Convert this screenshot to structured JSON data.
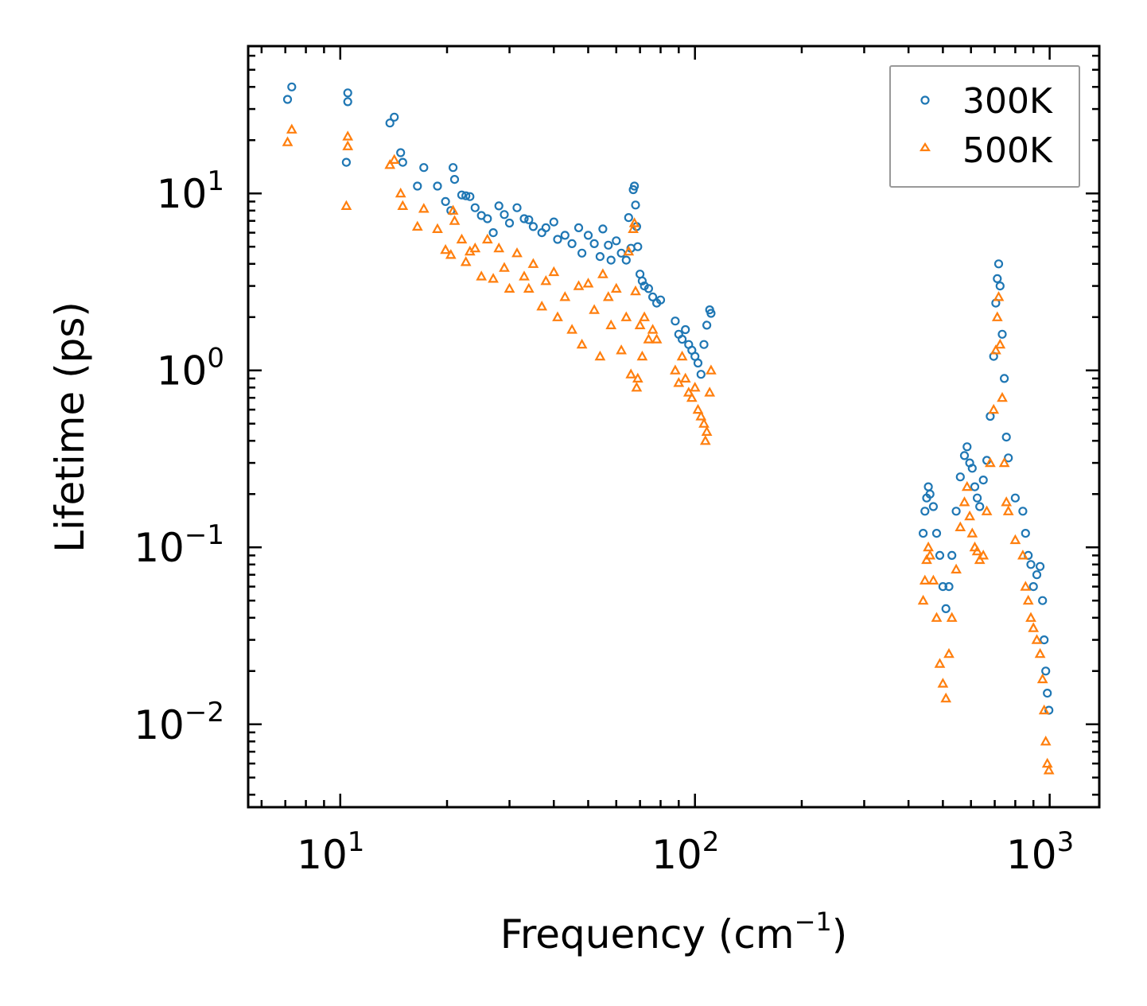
{
  "chart_data": {
    "type": "scatter",
    "xscale": "log",
    "yscale": "log",
    "xlabel": {
      "main": "Frequency (cm",
      "sup": "−1",
      "tail": ")"
    },
    "ylabel": "Lifetime (ps)",
    "xlim": [
      5.5,
      1380
    ],
    "ylim": [
      0.0034,
      68
    ],
    "x_ticks": [
      {
        "value": 10,
        "base": "10",
        "exp": "1"
      },
      {
        "value": 100,
        "base": "10",
        "exp": "2"
      },
      {
        "value": 1000,
        "base": "10",
        "exp": "3"
      }
    ],
    "y_ticks": [
      {
        "value": 0.01,
        "base": "10",
        "exp": "−2"
      },
      {
        "value": 0.1,
        "base": "10",
        "exp": "−1"
      },
      {
        "value": 1,
        "base": "10",
        "exp": "0"
      },
      {
        "value": 10,
        "base": "10",
        "exp": "1"
      }
    ],
    "legend_position": "top-right",
    "series": [
      {
        "name": "300K",
        "marker": "circle",
        "color": "#1f77b4",
        "points": [
          [
            7.1,
            34
          ],
          [
            7.3,
            40
          ],
          [
            10.5,
            37
          ],
          [
            10.5,
            33
          ],
          [
            10.4,
            15
          ],
          [
            13.8,
            25
          ],
          [
            14.2,
            27
          ],
          [
            14.8,
            17
          ],
          [
            15.0,
            15
          ],
          [
            16.5,
            11
          ],
          [
            17.2,
            14
          ],
          [
            18.8,
            11
          ],
          [
            19.8,
            9
          ],
          [
            20.5,
            8
          ],
          [
            20.8,
            14
          ],
          [
            21.0,
            12
          ],
          [
            22.0,
            9.8
          ],
          [
            22.6,
            9.7
          ],
          [
            23.2,
            9.6
          ],
          [
            24.0,
            8.3
          ],
          [
            25.0,
            7.5
          ],
          [
            26.0,
            7.2
          ],
          [
            27.0,
            6.0
          ],
          [
            28.0,
            8.5
          ],
          [
            29.0,
            7.6
          ],
          [
            30.0,
            6.8
          ],
          [
            31.5,
            8.3
          ],
          [
            33.0,
            7.2
          ],
          [
            34.0,
            7.1
          ],
          [
            35.0,
            6.5
          ],
          [
            37.0,
            6.0
          ],
          [
            38.0,
            6.4
          ],
          [
            40.0,
            6.9
          ],
          [
            41.0,
            5.5
          ],
          [
            43.0,
            5.8
          ],
          [
            45.0,
            5.2
          ],
          [
            47.0,
            6.4
          ],
          [
            48.0,
            4.6
          ],
          [
            50.0,
            5.8
          ],
          [
            52.0,
            5.2
          ],
          [
            54.0,
            4.4
          ],
          [
            55.0,
            6.3
          ],
          [
            57.0,
            5.1
          ],
          [
            58.0,
            4.2
          ],
          [
            60.0,
            5.4
          ],
          [
            62.0,
            4.6
          ],
          [
            64.0,
            4.2
          ],
          [
            65.0,
            7.3
          ],
          [
            66.0,
            4.9
          ],
          [
            67.0,
            10.5
          ],
          [
            67.5,
            11.0
          ],
          [
            68.0,
            8.6
          ],
          [
            68.5,
            6.5
          ],
          [
            69.0,
            5.0
          ],
          [
            70.0,
            3.5
          ],
          [
            71.0,
            3.2
          ],
          [
            72.0,
            3.0
          ],
          [
            74.0,
            2.9
          ],
          [
            76.0,
            2.6
          ],
          [
            78.0,
            2.4
          ],
          [
            80.0,
            2.5
          ],
          [
            88.0,
            1.9
          ],
          [
            90.0,
            1.6
          ],
          [
            92.0,
            1.5
          ],
          [
            94.0,
            1.7
          ],
          [
            96.0,
            1.4
          ],
          [
            98.0,
            1.3
          ],
          [
            100.0,
            1.2
          ],
          [
            102.0,
            1.1
          ],
          [
            104.0,
            0.95
          ],
          [
            106.0,
            1.4
          ],
          [
            108.0,
            1.8
          ],
          [
            110.0,
            2.2
          ],
          [
            111.0,
            2.1
          ],
          [
            440.0,
            0.12
          ],
          [
            445.0,
            0.16
          ],
          [
            450.0,
            0.19
          ],
          [
            455.0,
            0.22
          ],
          [
            460.0,
            0.2
          ],
          [
            470.0,
            0.17
          ],
          [
            480.0,
            0.12
          ],
          [
            490.0,
            0.09
          ],
          [
            500.0,
            0.06
          ],
          [
            510.0,
            0.045
          ],
          [
            520.0,
            0.06
          ],
          [
            530.0,
            0.09
          ],
          [
            545.0,
            0.16
          ],
          [
            560.0,
            0.25
          ],
          [
            575.0,
            0.33
          ],
          [
            585.0,
            0.37
          ],
          [
            595.0,
            0.3
          ],
          [
            605.0,
            0.28
          ],
          [
            615.0,
            0.22
          ],
          [
            625.0,
            0.19
          ],
          [
            635.0,
            0.17
          ],
          [
            650.0,
            0.24
          ],
          [
            665.0,
            0.31
          ],
          [
            680.0,
            0.55
          ],
          [
            695.0,
            1.2
          ],
          [
            705.0,
            2.4
          ],
          [
            712.0,
            3.3
          ],
          [
            718.0,
            4.0
          ],
          [
            725.0,
            3.0
          ],
          [
            735.0,
            1.6
          ],
          [
            745.0,
            0.9
          ],
          [
            755.0,
            0.42
          ],
          [
            765.0,
            0.32
          ],
          [
            800.0,
            0.19
          ],
          [
            840.0,
            0.16
          ],
          [
            855.0,
            0.12
          ],
          [
            870.0,
            0.09
          ],
          [
            885.0,
            0.08
          ],
          [
            900.0,
            0.06
          ],
          [
            920.0,
            0.07
          ],
          [
            940.0,
            0.078
          ],
          [
            955.0,
            0.05
          ],
          [
            965.0,
            0.03
          ],
          [
            975.0,
            0.02
          ],
          [
            985.0,
            0.015
          ],
          [
            995.0,
            0.012
          ]
        ]
      },
      {
        "name": "500K",
        "marker": "triangle",
        "color": "#ff7f0e",
        "points": [
          [
            7.1,
            19.5
          ],
          [
            7.3,
            23
          ],
          [
            10.5,
            21
          ],
          [
            10.5,
            18.5
          ],
          [
            10.4,
            8.5
          ],
          [
            13.8,
            14.5
          ],
          [
            14.2,
            15.5
          ],
          [
            14.8,
            10
          ],
          [
            15.0,
            8.5
          ],
          [
            16.5,
            6.5
          ],
          [
            17.2,
            8.2
          ],
          [
            18.8,
            6.3
          ],
          [
            19.8,
            4.8
          ],
          [
            20.5,
            4.5
          ],
          [
            20.8,
            8.0
          ],
          [
            21.0,
            7.0
          ],
          [
            22.0,
            5.5
          ],
          [
            22.6,
            4.1
          ],
          [
            23.2,
            4.7
          ],
          [
            24.0,
            4.9
          ],
          [
            25.0,
            3.4
          ],
          [
            26.0,
            5.5
          ],
          [
            27.0,
            3.3
          ],
          [
            28.0,
            4.9
          ],
          [
            29.0,
            3.8
          ],
          [
            30.0,
            2.9
          ],
          [
            31.5,
            4.6
          ],
          [
            33.0,
            3.4
          ],
          [
            34.0,
            2.9
          ],
          [
            35.0,
            4.0
          ],
          [
            37.0,
            2.3
          ],
          [
            38.0,
            3.2
          ],
          [
            40.0,
            3.6
          ],
          [
            41.0,
            2.0
          ],
          [
            43.0,
            2.6
          ],
          [
            45.0,
            1.7
          ],
          [
            47.0,
            3.0
          ],
          [
            48.0,
            1.4
          ],
          [
            50.0,
            3.1
          ],
          [
            52.0,
            2.2
          ],
          [
            54.0,
            1.2
          ],
          [
            55.0,
            3.5
          ],
          [
            57.0,
            2.6
          ],
          [
            58.0,
            1.8
          ],
          [
            60.0,
            2.9
          ],
          [
            62.0,
            1.3
          ],
          [
            64.0,
            2.0
          ],
          [
            65.0,
            4.7
          ],
          [
            66.0,
            0.95
          ],
          [
            67.0,
            6.3
          ],
          [
            67.5,
            6.8
          ],
          [
            68.0,
            2.8
          ],
          [
            68.5,
            0.8
          ],
          [
            69.0,
            0.9
          ],
          [
            70.0,
            1.8
          ],
          [
            71.0,
            1.2
          ],
          [
            72.0,
            2.0
          ],
          [
            74.0,
            1.5
          ],
          [
            76.0,
            1.7
          ],
          [
            78.0,
            1.5
          ],
          [
            88.0,
            1.0
          ],
          [
            90.0,
            0.85
          ],
          [
            92.0,
            1.2
          ],
          [
            94.0,
            0.9
          ],
          [
            96.0,
            0.75
          ],
          [
            98.0,
            0.7
          ],
          [
            100.0,
            0.8
          ],
          [
            102.0,
            0.6
          ],
          [
            104.0,
            0.55
          ],
          [
            106.0,
            0.5
          ],
          [
            107.0,
            0.4
          ],
          [
            108.0,
            0.45
          ],
          [
            110.0,
            0.75
          ],
          [
            111.0,
            1.0
          ],
          [
            440.0,
            0.05
          ],
          [
            445.0,
            0.065
          ],
          [
            450.0,
            0.085
          ],
          [
            455.0,
            0.1
          ],
          [
            460.0,
            0.09
          ],
          [
            470.0,
            0.065
          ],
          [
            480.0,
            0.04
          ],
          [
            490.0,
            0.022
          ],
          [
            500.0,
            0.017
          ],
          [
            510.0,
            0.014
          ],
          [
            520.0,
            0.025
          ],
          [
            530.0,
            0.04
          ],
          [
            545.0,
            0.075
          ],
          [
            560.0,
            0.13
          ],
          [
            575.0,
            0.18
          ],
          [
            585.0,
            0.22
          ],
          [
            595.0,
            0.15
          ],
          [
            605.0,
            0.12
          ],
          [
            615.0,
            0.1
          ],
          [
            625.0,
            0.095
          ],
          [
            635.0,
            0.085
          ],
          [
            650.0,
            0.09
          ],
          [
            665.0,
            0.16
          ],
          [
            680.0,
            0.3
          ],
          [
            695.0,
            0.6
          ],
          [
            705.0,
            1.3
          ],
          [
            712.0,
            2.0
          ],
          [
            718.0,
            2.6
          ],
          [
            725.0,
            1.4
          ],
          [
            735.0,
            0.7
          ],
          [
            745.0,
            0.3
          ],
          [
            755.0,
            0.18
          ],
          [
            765.0,
            0.16
          ],
          [
            800.0,
            0.11
          ],
          [
            840.0,
            0.09
          ],
          [
            855.0,
            0.06
          ],
          [
            870.0,
            0.05
          ],
          [
            885.0,
            0.04
          ],
          [
            900.0,
            0.035
          ],
          [
            920.0,
            0.03
          ],
          [
            940.0,
            0.025
          ],
          [
            955.0,
            0.018
          ],
          [
            965.0,
            0.012
          ],
          [
            975.0,
            0.008
          ],
          [
            985.0,
            0.006
          ],
          [
            995.0,
            0.0055
          ]
        ]
      }
    ]
  }
}
